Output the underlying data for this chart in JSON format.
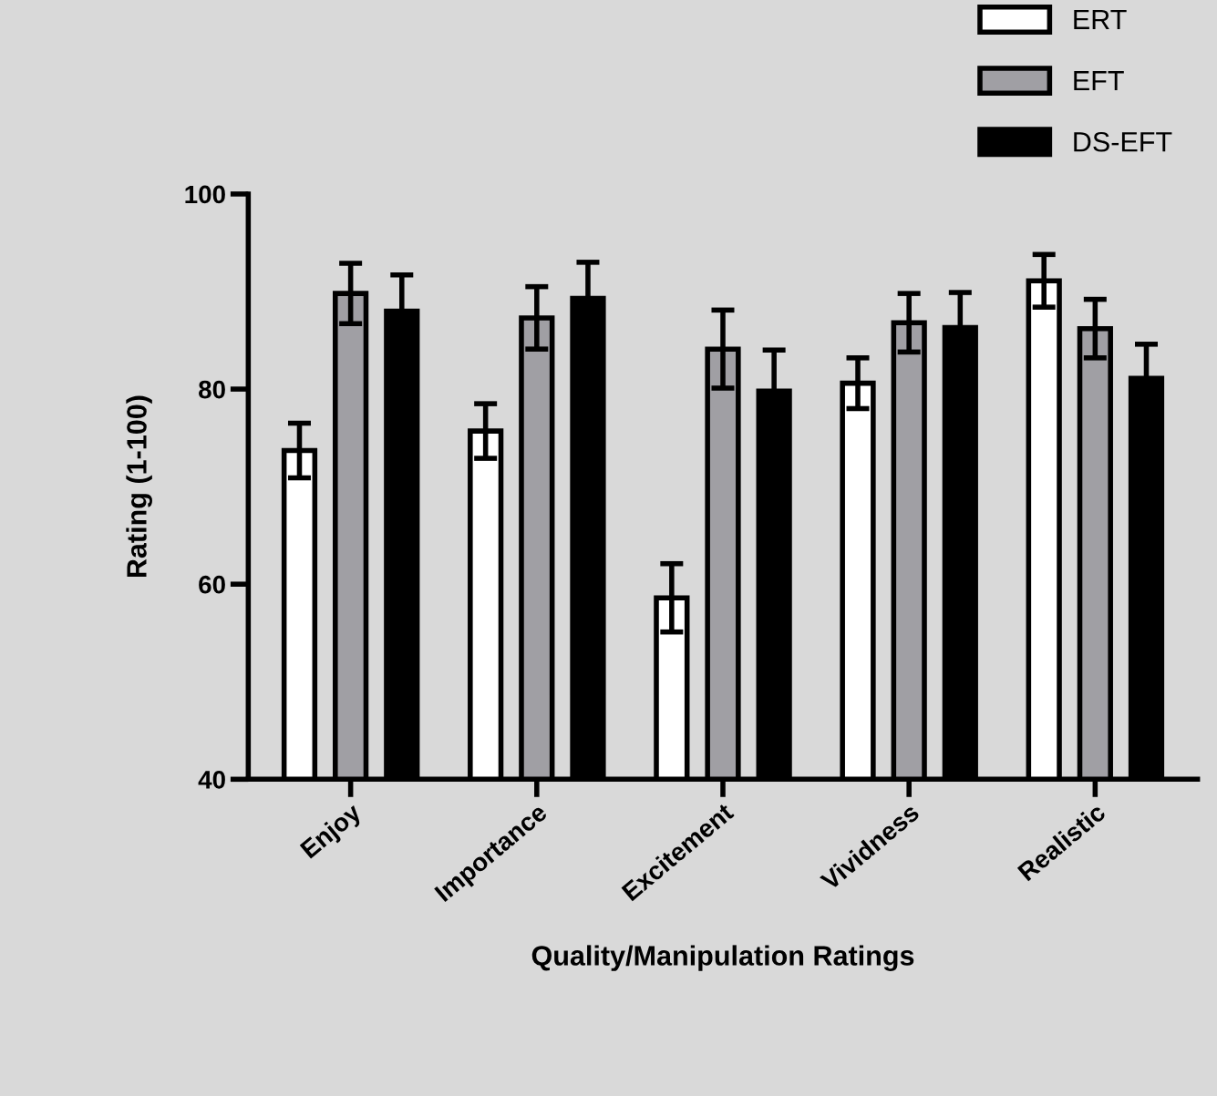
{
  "chart_data": {
    "type": "bar",
    "xlabel": "Quality/Manipulation Ratings",
    "ylabel": "Rating (1-100)",
    "categories": [
      "Enjoy",
      "Importance",
      "Excitement",
      "Vividness",
      "Realistic"
    ],
    "series": [
      {
        "name": "ERT",
        "color": "#ffffff",
        "values": [
          73.7,
          75.7,
          58.6,
          80.6,
          91.1
        ],
        "errors": [
          2.8,
          2.8,
          3.5,
          2.6,
          2.7
        ]
      },
      {
        "name": "EFT",
        "color": "#a09fa4",
        "values": [
          89.8,
          87.3,
          84.1,
          86.8,
          86.2
        ],
        "errors": [
          3.1,
          3.2,
          4.0,
          3.0,
          3.0
        ]
      },
      {
        "name": "DS-EFT",
        "color": "#000000",
        "values": [
          88.0,
          89.3,
          79.8,
          86.3,
          81.1
        ],
        "errors": [
          3.7,
          3.7,
          4.2,
          3.6,
          3.5
        ]
      }
    ],
    "ylim": [
      40,
      100
    ],
    "yticks": [
      40,
      60,
      80,
      100
    ],
    "grid": false,
    "legend": "top right"
  }
}
